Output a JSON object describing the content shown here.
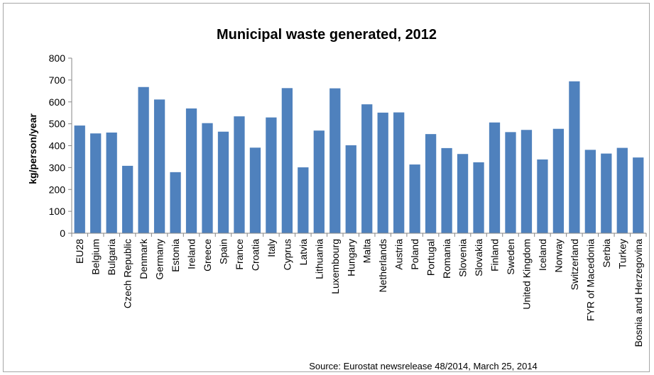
{
  "chart_data": {
    "type": "bar",
    "title": "Municipal waste generated, 2012",
    "ylabel": "kg/person/year",
    "xlabel": "",
    "ylim": [
      0,
      800
    ],
    "yticks": [
      0,
      100,
      200,
      300,
      400,
      500,
      600,
      700,
      800
    ],
    "grid": false,
    "legend": "none",
    "bar_color": "#4f81bd",
    "categories": [
      "EU28",
      "Belgium",
      "Bulgaria",
      "Czech Republic",
      "Denmark",
      "Germany",
      "Estonia",
      "Ireland",
      "Greece",
      "Spain",
      "France",
      "Croatia",
      "Italy",
      "Cyprus",
      "Latvia",
      "Lithuania",
      "Luxembourg",
      "Hungary",
      "Malta",
      "Netherlands",
      "Austria",
      "Poland",
      "Portugal",
      "Romania",
      "Slovenia",
      "Slovakia",
      "Finland",
      "Sweden",
      "United Kingdom",
      "Iceland",
      "Norway",
      "Switzerland",
      "FYR of Macedonia",
      "Serbia",
      "Turkey",
      "Bosnia and Herzegovina"
    ],
    "values": [
      492,
      456,
      460,
      308,
      668,
      611,
      279,
      570,
      503,
      464,
      534,
      391,
      529,
      663,
      301,
      469,
      662,
      402,
      589,
      551,
      552,
      314,
      453,
      389,
      362,
      324,
      506,
      462,
      472,
      337,
      477,
      694,
      381,
      364,
      390,
      346
    ],
    "source": "Source: Eurostat newsrelease 48/2014,  March 25, 2014"
  }
}
